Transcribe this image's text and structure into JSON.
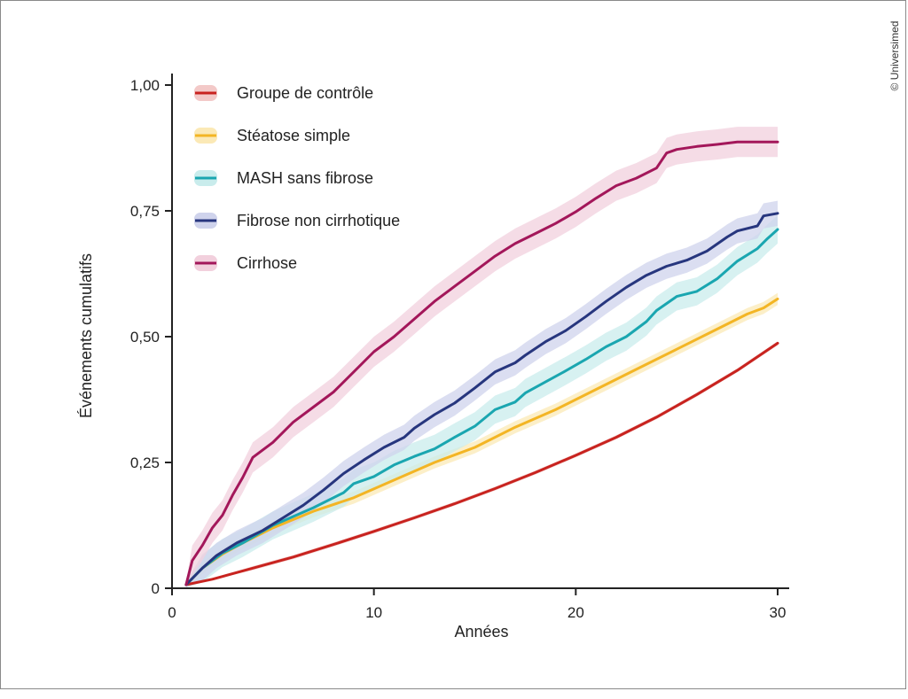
{
  "credit": "© Universimed",
  "chart_data": {
    "type": "line",
    "xlabel": "Années",
    "ylabel": "Événements cumulatifs",
    "xlim": [
      0,
      30
    ],
    "ylim": [
      0,
      1
    ],
    "x_ticks": [
      0,
      10,
      20,
      30
    ],
    "x_tick_labels": [
      "0",
      "10",
      "20",
      "30"
    ],
    "y_ticks": [
      0,
      0.25,
      0.5,
      0.75,
      1.0
    ],
    "y_tick_labels": [
      "0",
      "0,25",
      "0,50",
      "0,75",
      "1,00"
    ],
    "grid": false,
    "legend_position": "top-left",
    "series": [
      {
        "name": "Groupe de contrôle",
        "color": "#c8231f",
        "band_color": "#f3c9c8",
        "points": [
          [
            0.7,
            0.007
          ],
          [
            2,
            0.018
          ],
          [
            4,
            0.04
          ],
          [
            6,
            0.062
          ],
          [
            8,
            0.087
          ],
          [
            10,
            0.113
          ],
          [
            12,
            0.14
          ],
          [
            14,
            0.168
          ],
          [
            16,
            0.198
          ],
          [
            18,
            0.23
          ],
          [
            20,
            0.264
          ],
          [
            22,
            0.3
          ],
          [
            24,
            0.34
          ],
          [
            26,
            0.385
          ],
          [
            28,
            0.433
          ],
          [
            30,
            0.487
          ]
        ],
        "band": 0.004
      },
      {
        "name": "Stéatose simple",
        "color": "#f3b524",
        "band_color": "#fbe9b6",
        "points": [
          [
            0.7,
            0.007
          ],
          [
            1.5,
            0.04
          ],
          [
            2.5,
            0.068
          ],
          [
            3.5,
            0.09
          ],
          [
            5,
            0.12
          ],
          [
            7,
            0.153
          ],
          [
            9,
            0.18
          ],
          [
            11,
            0.215
          ],
          [
            13,
            0.25
          ],
          [
            15,
            0.28
          ],
          [
            17,
            0.32
          ],
          [
            19,
            0.355
          ],
          [
            21,
            0.395
          ],
          [
            23,
            0.435
          ],
          [
            25,
            0.475
          ],
          [
            27,
            0.515
          ],
          [
            28.5,
            0.545
          ],
          [
            29.3,
            0.557
          ],
          [
            30,
            0.575
          ]
        ],
        "band": 0.012
      },
      {
        "name": "MASH sans fibrose",
        "color": "#1aa6b0",
        "band_color": "#c9ecec",
        "points": [
          [
            0.7,
            0.007
          ],
          [
            1.5,
            0.04
          ],
          [
            2.5,
            0.07
          ],
          [
            3.5,
            0.09
          ],
          [
            5,
            0.125
          ],
          [
            7,
            0.16
          ],
          [
            8.5,
            0.19
          ],
          [
            9,
            0.208
          ],
          [
            10,
            0.222
          ],
          [
            11,
            0.245
          ],
          [
            12,
            0.262
          ],
          [
            13,
            0.277
          ],
          [
            14,
            0.3
          ],
          [
            15,
            0.322
          ],
          [
            16,
            0.355
          ],
          [
            17,
            0.37
          ],
          [
            17.5,
            0.388
          ],
          [
            18.5,
            0.41
          ],
          [
            19.5,
            0.432
          ],
          [
            20.5,
            0.455
          ],
          [
            21.5,
            0.48
          ],
          [
            22.5,
            0.5
          ],
          [
            23.5,
            0.53
          ],
          [
            24,
            0.552
          ],
          [
            25,
            0.58
          ],
          [
            26,
            0.59
          ],
          [
            27,
            0.615
          ],
          [
            28,
            0.65
          ],
          [
            29,
            0.675
          ],
          [
            29.5,
            0.695
          ],
          [
            30,
            0.713
          ]
        ],
        "band": 0.028
      },
      {
        "name": "Fibrose non cirrhotique",
        "color": "#27367e",
        "band_color": "#cfd3ec",
        "points": [
          [
            0.7,
            0.007
          ],
          [
            1.5,
            0.04
          ],
          [
            2.2,
            0.065
          ],
          [
            3.2,
            0.09
          ],
          [
            4.5,
            0.115
          ],
          [
            5.5,
            0.14
          ],
          [
            6.5,
            0.165
          ],
          [
            7.5,
            0.195
          ],
          [
            8.5,
            0.228
          ],
          [
            9.5,
            0.255
          ],
          [
            10.5,
            0.28
          ],
          [
            11.5,
            0.3
          ],
          [
            12,
            0.318
          ],
          [
            13,
            0.345
          ],
          [
            14,
            0.368
          ],
          [
            15,
            0.398
          ],
          [
            16,
            0.43
          ],
          [
            17,
            0.448
          ],
          [
            17.5,
            0.463
          ],
          [
            18.5,
            0.49
          ],
          [
            19.5,
            0.512
          ],
          [
            20.5,
            0.54
          ],
          [
            21.5,
            0.57
          ],
          [
            22.5,
            0.598
          ],
          [
            23.5,
            0.622
          ],
          [
            24.5,
            0.64
          ],
          [
            25.5,
            0.652
          ],
          [
            26.5,
            0.67
          ],
          [
            27.5,
            0.698
          ],
          [
            28,
            0.71
          ],
          [
            29,
            0.72
          ],
          [
            29.3,
            0.74
          ],
          [
            30,
            0.745
          ]
        ],
        "band": 0.025
      },
      {
        "name": "Cirrhose",
        "color": "#a3175a",
        "band_color": "#f2d0dd",
        "points": [
          [
            0.7,
            0.007
          ],
          [
            1.0,
            0.055
          ],
          [
            1.5,
            0.085
          ],
          [
            2,
            0.12
          ],
          [
            2.5,
            0.145
          ],
          [
            3,
            0.185
          ],
          [
            3.5,
            0.22
          ],
          [
            4,
            0.26
          ],
          [
            5,
            0.29
          ],
          [
            6,
            0.33
          ],
          [
            7,
            0.36
          ],
          [
            8,
            0.39
          ],
          [
            9,
            0.43
          ],
          [
            10,
            0.47
          ],
          [
            11,
            0.5
          ],
          [
            12,
            0.535
          ],
          [
            13,
            0.57
          ],
          [
            14,
            0.6
          ],
          [
            15,
            0.63
          ],
          [
            16,
            0.66
          ],
          [
            17,
            0.685
          ],
          [
            18,
            0.705
          ],
          [
            19,
            0.725
          ],
          [
            20,
            0.748
          ],
          [
            21,
            0.775
          ],
          [
            22,
            0.8
          ],
          [
            23,
            0.815
          ],
          [
            24,
            0.835
          ],
          [
            24.5,
            0.865
          ],
          [
            25,
            0.872
          ],
          [
            26,
            0.878
          ],
          [
            27,
            0.882
          ],
          [
            28,
            0.887
          ],
          [
            29,
            0.887
          ],
          [
            30,
            0.887
          ]
        ],
        "band": 0.03
      }
    ]
  }
}
